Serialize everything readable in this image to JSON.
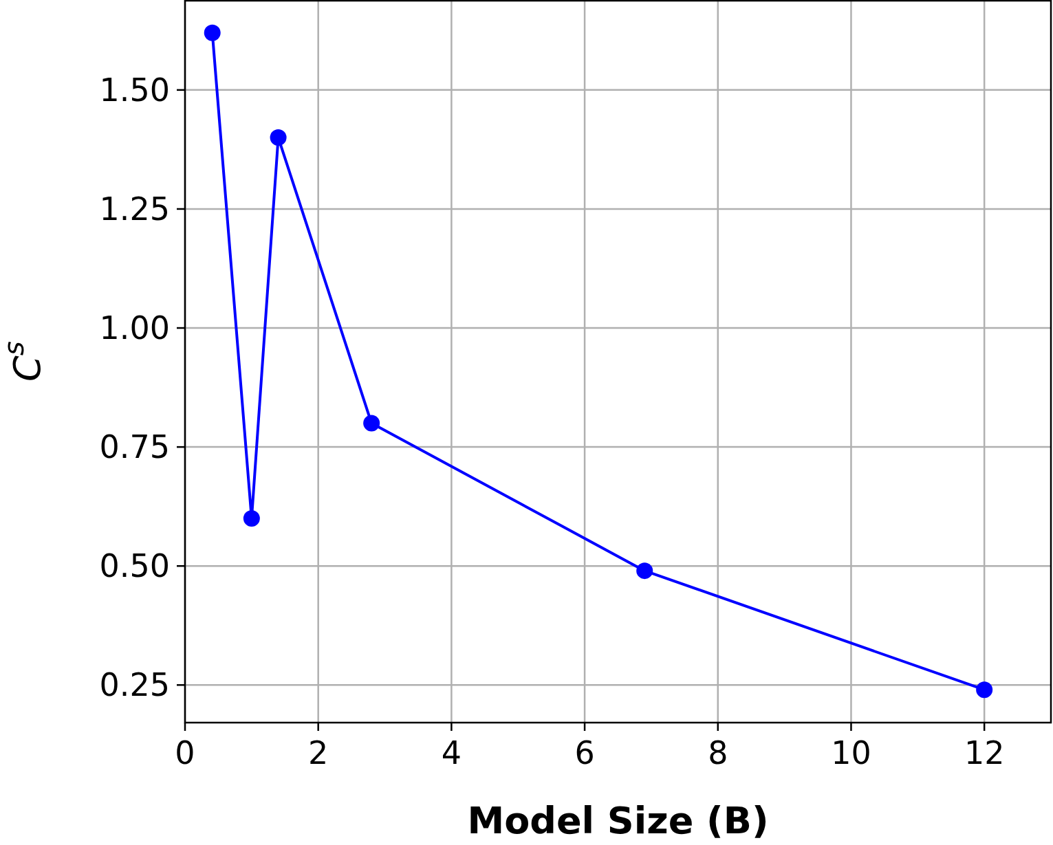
{
  "chart_data": {
    "type": "line",
    "xlabel": "Model Size (B)",
    "ylabel": "C$^{s}$",
    "xlim": [
      0,
      13
    ],
    "xticks": [
      0,
      2,
      4,
      6,
      8,
      10,
      12
    ],
    "ylim": [
      0.171,
      1.689
    ],
    "yticks": [
      {
        "value": 0.25,
        "label": "0.25"
      },
      {
        "value": 0.5,
        "label": "0.50"
      },
      {
        "value": 0.75,
        "label": "0.75"
      },
      {
        "value": 1,
        "label": "1.00"
      },
      {
        "value": 1.25,
        "label": "1.25"
      },
      {
        "value": 1.5,
        "label": "1.50"
      }
    ],
    "grid": true,
    "marker": "circle",
    "line_style": "solid",
    "series": [
      {
        "color": "#0000ff",
        "x": [
          0.41,
          1.0,
          1.4,
          2.8,
          6.9,
          12.0
        ],
        "values": [
          1.62,
          0.6,
          1.4,
          0.8,
          0.49,
          0.24
        ]
      }
    ]
  }
}
